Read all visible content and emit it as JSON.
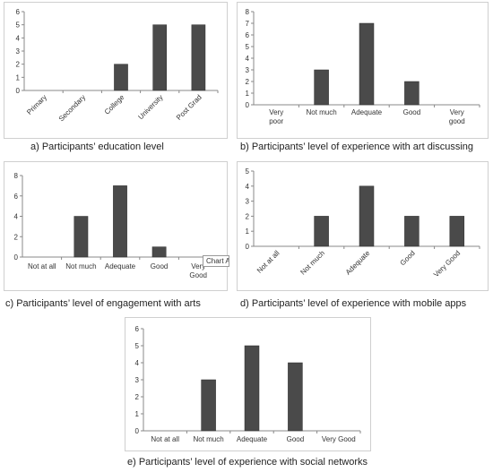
{
  "chart_data": [
    {
      "type": "bar",
      "categories": [
        "Primary",
        "Secondary",
        "College",
        "University",
        "Post Grad"
      ],
      "values": [
        0,
        0,
        2,
        5,
        5
      ],
      "ylim": [
        0,
        6
      ],
      "yticks": [
        0,
        1,
        2,
        3,
        4,
        5,
        6
      ],
      "caption": "a) Participants’ education level",
      "rotate_labels": true
    },
    {
      "type": "bar",
      "categories": [
        "Very poor",
        "Not much",
        "Adequate",
        "Good",
        "Very good"
      ],
      "values": [
        0,
        3,
        7,
        2,
        0
      ],
      "ylim": [
        0,
        8
      ],
      "yticks": [
        0,
        1,
        2,
        3,
        4,
        5,
        6,
        7,
        8
      ],
      "caption": "b) Participants’ level of experience with art discussing",
      "rotate_labels": false
    },
    {
      "type": "bar",
      "categories": [
        "Not at all",
        "Not much",
        "Adequate",
        "Good",
        "Very Good"
      ],
      "values": [
        0,
        4,
        7,
        1,
        0
      ],
      "ylim": [
        0,
        8
      ],
      "yticks": [
        0,
        2,
        4,
        6,
        8
      ],
      "caption": "c) Participants’ level of engagement with arts",
      "rotate_labels": false,
      "tooltip": "Chart Ar"
    },
    {
      "type": "bar",
      "categories": [
        "Not at all",
        "Not much",
        "Adequate",
        "Good",
        "Very Good"
      ],
      "values": [
        0,
        2,
        4,
        2,
        2
      ],
      "ylim": [
        0,
        5
      ],
      "yticks": [
        0,
        1,
        2,
        3,
        4,
        5
      ],
      "caption": "d) Participants’ level of experience with mobile apps",
      "rotate_labels": true
    },
    {
      "type": "bar",
      "categories": [
        "Not at all",
        "Not much",
        "Adequate",
        "Good",
        "Very Good"
      ],
      "values": [
        0,
        3,
        5,
        4,
        0
      ],
      "ylim": [
        0,
        6
      ],
      "yticks": [
        0,
        1,
        2,
        3,
        4,
        5,
        6
      ],
      "caption": "e) Participants’ level of experience with social networks",
      "rotate_labels": false
    }
  ],
  "colors": {
    "bar": "#4a4a4a",
    "bar_edge": "#2e2e2e",
    "axis": "#888888"
  }
}
